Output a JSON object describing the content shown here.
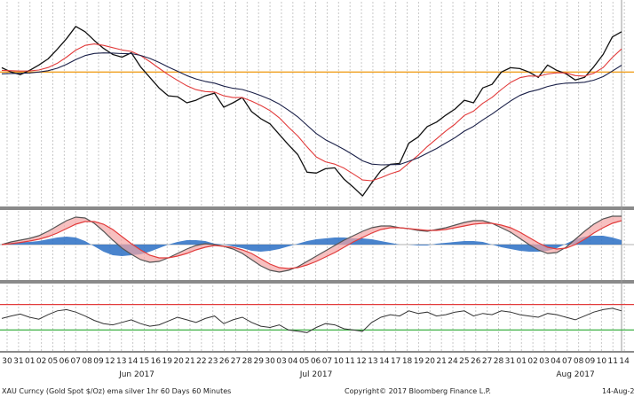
{
  "chart_data": {
    "type": "line",
    "footer": {
      "left": "XAU Curncy (Gold Spot   $/Oz) ema silver 1hr 60 Days 60 Minutes",
      "center": "Copyright© 2017 Bloomberg Finance L.P.",
      "right": "14-Aug-2"
    },
    "x_day_labels": [
      "30",
      "31",
      "01",
      "02",
      "05",
      "06",
      "07",
      "08",
      "09",
      "12",
      "13",
      "14",
      "15",
      "16",
      "19",
      "20",
      "21",
      "22",
      "23",
      "26",
      "27",
      "28",
      "29",
      "30",
      "03",
      "04",
      "05",
      "06",
      "07",
      "10",
      "11",
      "12",
      "13",
      "14",
      "17",
      "18",
      "19",
      "20",
      "21",
      "24",
      "25",
      "26",
      "27",
      "28",
      "31",
      "01",
      "02",
      "03",
      "04",
      "07",
      "08",
      "09",
      "10",
      "11",
      "14"
    ],
    "x_month_labels": [
      "Jun 2017",
      "Jul 2017",
      "Aug 2017"
    ],
    "price_panel": {
      "series": [
        {
          "color": "#111111",
          "values": [
            1270.5,
            1268.0,
            1266.5,
            1269.0,
            1272.0,
            1275.5,
            1281.0,
            1287.0,
            1294.0,
            1291.0,
            1286.0,
            1281.5,
            1278.0,
            1276.5,
            1279.0,
            1271.0,
            1265.0,
            1259.0,
            1254.5,
            1254.0,
            1250.5,
            1252.0,
            1254.5,
            1256.0,
            1248.0,
            1250.5,
            1253.5,
            1245.5,
            1241.5,
            1238.5,
            1232.5,
            1226.5,
            1221.0,
            1211.0,
            1210.5,
            1213.0,
            1213.5,
            1207.0,
            1202.5,
            1197.5,
            1205.0,
            1212.0,
            1215.5,
            1216.0,
            1227.5,
            1231.0,
            1237.0,
            1239.5,
            1243.5,
            1247.0,
            1252.0,
            1250.5,
            1259.0,
            1261.0,
            1268.0,
            1270.5,
            1270.0,
            1268.0,
            1265.0,
            1272.0,
            1269.0,
            1267.0,
            1263.5,
            1265.0,
            1271.0,
            1278.0,
            1288.0,
            1291.0
          ]
        },
        {
          "color": "#e23b3b",
          "values": [
            1269.0,
            1268.8,
            1268.6,
            1268.7,
            1269.2,
            1270.6,
            1273.0,
            1276.5,
            1280.5,
            1283.2,
            1284.0,
            1283.2,
            1281.9,
            1280.6,
            1279.8,
            1277.4,
            1274.0,
            1270.2,
            1266.5,
            1263.3,
            1260.2,
            1258.0,
            1256.9,
            1256.6,
            1254.5,
            1253.5,
            1253.5,
            1251.5,
            1249.0,
            1246.1,
            1242.0,
            1236.6,
            1231.6,
            1225.4,
            1219.7,
            1216.9,
            1215.6,
            1213.3,
            1210.0,
            1206.6,
            1206.1,
            1207.9,
            1210.1,
            1211.8,
            1216.2,
            1220.6,
            1225.6,
            1230.0,
            1234.5,
            1238.4,
            1243.3,
            1245.8,
            1250.2,
            1253.6,
            1258.1,
            1262.1,
            1264.8,
            1265.8,
            1265.6,
            1266.9,
            1267.6,
            1267.5,
            1266.0,
            1265.7,
            1267.3,
            1270.6,
            1276.3,
            1281.2
          ]
        },
        {
          "color": "#1b2149",
          "values": [
            1267.0,
            1267.2,
            1267.3,
            1267.5,
            1268.0,
            1268.8,
            1270.2,
            1272.4,
            1275.1,
            1277.4,
            1278.6,
            1278.9,
            1278.8,
            1278.5,
            1278.5,
            1277.5,
            1275.8,
            1273.5,
            1270.9,
            1268.5,
            1266.0,
            1264.1,
            1262.7,
            1261.7,
            1260.0,
            1258.8,
            1258.1,
            1256.5,
            1254.6,
            1252.5,
            1249.8,
            1246.3,
            1242.5,
            1237.7,
            1233.0,
            1229.5,
            1226.8,
            1224.0,
            1220.8,
            1217.5,
            1215.6,
            1215.2,
            1215.3,
            1215.4,
            1217.2,
            1219.2,
            1221.8,
            1224.5,
            1227.6,
            1230.7,
            1234.4,
            1237.1,
            1240.8,
            1244.1,
            1247.9,
            1251.6,
            1254.7,
            1256.7,
            1258.0,
            1259.8,
            1261.0,
            1261.7,
            1261.8,
            1262.2,
            1263.4,
            1265.4,
            1268.6,
            1271.9
          ]
        }
      ],
      "reference_line": {
        "value": 1268.0,
        "color": "#f0a020"
      },
      "ylim": [
        1192,
        1305
      ]
    },
    "oscillator_panel": {
      "series": [
        {
          "color": "#555555",
          "values": [
            0.0,
            0.15,
            0.25,
            0.35,
            0.5,
            0.75,
            1.05,
            1.35,
            1.55,
            1.5,
            1.2,
            0.75,
            0.25,
            -0.2,
            -0.55,
            -0.85,
            -1.0,
            -0.95,
            -0.75,
            -0.5,
            -0.25,
            -0.05,
            0.05,
            0.0,
            -0.1,
            -0.25,
            -0.5,
            -0.85,
            -1.2,
            -1.45,
            -1.55,
            -1.45,
            -1.25,
            -0.95,
            -0.65,
            -0.35,
            -0.05,
            0.25,
            0.5,
            0.75,
            0.95,
            1.05,
            1.05,
            0.95,
            0.9,
            0.8,
            0.75,
            0.85,
            0.95,
            1.1,
            1.25,
            1.35,
            1.35,
            1.2,
            0.95,
            0.7,
            0.35,
            0.0,
            -0.3,
            -0.5,
            -0.45,
            -0.15,
            0.3,
            0.75,
            1.15,
            1.45,
            1.6,
            1.6
          ]
        },
        {
          "color": "#e23b3b",
          "values": [
            0.0,
            0.05,
            0.12,
            0.2,
            0.3,
            0.45,
            0.65,
            0.9,
            1.15,
            1.3,
            1.3,
            1.15,
            0.85,
            0.45,
            0.05,
            -0.3,
            -0.6,
            -0.75,
            -0.75,
            -0.65,
            -0.5,
            -0.3,
            -0.15,
            -0.05,
            -0.1,
            -0.15,
            -0.3,
            -0.5,
            -0.8,
            -1.1,
            -1.3,
            -1.35,
            -1.3,
            -1.15,
            -0.95,
            -0.7,
            -0.45,
            -0.15,
            0.15,
            0.4,
            0.65,
            0.85,
            0.95,
            0.95,
            0.9,
            0.85,
            0.8,
            0.8,
            0.85,
            0.95,
            1.05,
            1.15,
            1.2,
            1.2,
            1.1,
            0.95,
            0.7,
            0.4,
            0.1,
            -0.15,
            -0.25,
            -0.2,
            0.0,
            0.3,
            0.65,
            0.95,
            1.2,
            1.35
          ]
        },
        {
          "color": "#2a6fc4",
          "values": [
            0.0,
            0.1,
            0.13,
            0.15,
            0.2,
            0.3,
            0.4,
            0.45,
            0.4,
            0.2,
            -0.1,
            -0.4,
            -0.6,
            -0.65,
            -0.6,
            -0.55,
            -0.4,
            -0.2,
            0.0,
            0.15,
            0.25,
            0.25,
            0.2,
            0.05,
            0.0,
            -0.1,
            -0.2,
            -0.35,
            -0.4,
            -0.35,
            -0.25,
            -0.1,
            0.05,
            0.2,
            0.3,
            0.35,
            0.4,
            0.4,
            0.35,
            0.35,
            0.3,
            0.2,
            0.1,
            0.0,
            0.0,
            -0.05,
            -0.05,
            0.05,
            0.1,
            0.15,
            0.2,
            0.2,
            0.15,
            0.0,
            -0.15,
            -0.25,
            -0.35,
            -0.4,
            -0.4,
            -0.35,
            -0.2,
            0.05,
            0.3,
            0.45,
            0.5,
            0.5,
            0.4,
            0.25
          ]
        }
      ],
      "ylim": [
        -1.9,
        1.9
      ]
    },
    "rsi_panel": {
      "series": [
        {
          "color": "#333333",
          "values": [
            48,
            52,
            55,
            50,
            47,
            54,
            60,
            62,
            58,
            52,
            45,
            40,
            38,
            42,
            46,
            40,
            36,
            38,
            44,
            50,
            46,
            42,
            48,
            52,
            40,
            46,
            50,
            42,
            36,
            34,
            38,
            30,
            28,
            26,
            34,
            40,
            38,
            32,
            30,
            28,
            42,
            50,
            54,
            52,
            60,
            56,
            58,
            52,
            54,
            58,
            60,
            52,
            56,
            54,
            60,
            58,
            54,
            52,
            50,
            56,
            54,
            50,
            46,
            52,
            58,
            62,
            64,
            60
          ]
        }
      ],
      "levels": [
        {
          "value": 70,
          "color": "#e23b3b"
        },
        {
          "value": 30,
          "color": "#3cb043"
        }
      ],
      "ylim": [
        0,
        100
      ]
    }
  }
}
